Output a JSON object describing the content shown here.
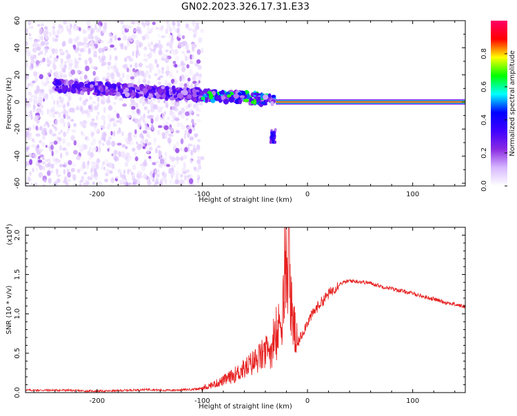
{
  "chart_data": [
    {
      "type": "heatmap",
      "title": "GN02.2023.326.17.31.E33",
      "xlabel": "Height of straight line (km)",
      "ylabel": "Frequency (Hz)",
      "xlim": [
        -268,
        150
      ],
      "ylim": [
        -62,
        60
      ],
      "x_ticks": [
        -200,
        -100,
        0,
        100
      ],
      "y_ticks": [
        60,
        40,
        20,
        0,
        -20,
        -40,
        -60
      ],
      "grid": false,
      "colorbar": {
        "label": "Normalized spectral amplitude",
        "range": [
          0.0,
          1.0
        ],
        "ticks": [
          0.0,
          0.2,
          0.4,
          0.6,
          0.8
        ],
        "colormap": [
          "#ffffff",
          "#d7b8ff",
          "#8a2be2",
          "#3f00ff",
          "#0000ff",
          "#00ffff",
          "#00ff00",
          "#ffff00",
          "#ff0000",
          "#ff0066"
        ]
      },
      "features": [
        {
          "name": "diffuse background noise",
          "x_range": [
            -268,
            -100
          ],
          "y_range": [
            -62,
            60
          ],
          "amplitude": 0.05
        },
        {
          "name": "main spectral line",
          "x_range": [
            -240,
            -30
          ],
          "y_range": [
            -5,
            15
          ],
          "amplitude": 0.3
        },
        {
          "name": "high amplitude zone",
          "x_range": [
            -100,
            -30
          ],
          "y_range": [
            -5,
            10
          ],
          "amplitude": 0.5
        },
        {
          "name": "steady tone",
          "x_range": [
            -30,
            150
          ],
          "frequency": 0,
          "amplitude": 0.95
        },
        {
          "name": "downward branch",
          "x_range": [
            -35,
            -30
          ],
          "y_range": [
            -30,
            -20
          ],
          "amplitude": 0.3
        }
      ]
    },
    {
      "type": "line",
      "xlabel": "Height of straight line (km)",
      "ylabel": "SNR (10 * v/v)",
      "y_multiplier_label": "(x10",
      "y_multiplier_exponent": "4",
      "y_multiplier_suffix": ")",
      "xlim": [
        -268,
        150
      ],
      "ylim": [
        0.0,
        2.1
      ],
      "x_ticks": [
        -200,
        -100,
        0,
        100
      ],
      "y_ticks": [
        0.0,
        0.5,
        1.0,
        1.5,
        2.0
      ],
      "line_color": "#e62020",
      "grid": false,
      "series": [
        {
          "x": [
            -268,
            -250,
            -230,
            -210,
            -190,
            -170,
            -150,
            -140,
            -130,
            -110,
            -100,
            -90,
            -80,
            -70,
            -60,
            -50,
            -40,
            -30,
            -25,
            -20,
            -18,
            -17,
            -15,
            -10,
            -5,
            0,
            5,
            10,
            20,
            30,
            40,
            50,
            60,
            70,
            80,
            90,
            100,
            110,
            120,
            130,
            140,
            150
          ],
          "values": [
            0.03,
            0.03,
            0.03,
            0.02,
            0.02,
            0.03,
            0.04,
            0.03,
            0.03,
            0.04,
            0.05,
            0.1,
            0.15,
            0.22,
            0.3,
            0.4,
            0.5,
            0.6,
            1.0,
            1.4,
            2.05,
            1.5,
            1.0,
            0.6,
            0.75,
            0.9,
            1.0,
            1.1,
            1.25,
            1.38,
            1.42,
            1.41,
            1.39,
            1.35,
            1.32,
            1.29,
            1.26,
            1.22,
            1.19,
            1.15,
            1.12,
            1.09
          ]
        }
      ]
    }
  ]
}
